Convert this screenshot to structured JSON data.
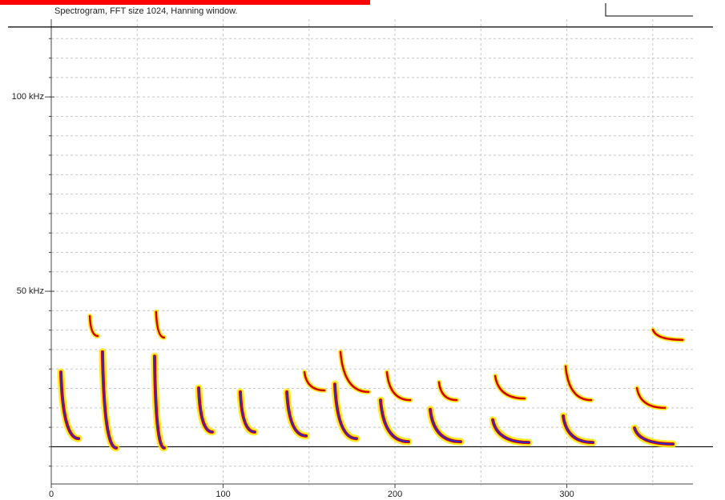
{
  "chart_data": {
    "type": "spectrogram",
    "title": "Spectrogram, FFT size 1024, Hanning window.",
    "xlim": [
      0,
      373.4
    ],
    "xticks": [
      0,
      100,
      200,
      300
    ],
    "ylim": [
      0,
      120
    ],
    "yticks": [
      {
        "value": 50,
        "label": "50 kHz"
      },
      {
        "value": 100,
        "label": "100 kHz"
      }
    ],
    "xgrid": [
      50,
      100,
      150,
      200,
      250,
      300,
      350
    ],
    "ygrid": [
      5,
      10,
      15,
      20,
      25,
      30,
      35,
      40,
      45,
      50,
      55,
      60,
      65,
      70,
      75,
      80,
      85,
      90,
      95,
      100,
      105,
      110,
      115
    ],
    "limit_lines": [
      118,
      10
    ],
    "colors": [
      "#ffe600",
      "#d40000",
      "#2a2ad0"
    ],
    "calls": [
      {
        "t": [
          5.6,
          15.9
        ],
        "f": [
          29.2,
          12.1
        ]
      },
      {
        "t": [
          29.8,
          37.8
        ],
        "f": [
          34.4,
          9.7
        ]
      },
      {
        "t": [
          60.1,
          65.7
        ],
        "f": [
          33.3,
          9.7
        ]
      },
      {
        "t": [
          85.8,
          93.7
        ],
        "f": [
          25.1,
          13.8
        ]
      },
      {
        "t": [
          110,
          118.4
        ],
        "f": [
          24.1,
          13.8
        ]
      },
      {
        "t": [
          137.1,
          148.3
        ],
        "f": [
          24.1,
          12.8
        ]
      },
      {
        "t": [
          165,
          177.6
        ],
        "f": [
          26.1,
          12.1
        ]
      },
      {
        "t": [
          191.6,
          207.9
        ],
        "f": [
          22,
          11.3
        ]
      },
      {
        "t": [
          220.5,
          238.2
        ],
        "f": [
          19.6,
          11.3
        ]
      },
      {
        "t": [
          256.9,
          277.9
        ],
        "f": [
          16.9,
          11.1
        ]
      },
      {
        "t": [
          297.9,
          315.2
        ],
        "f": [
          17.9,
          11.1
        ]
      },
      {
        "t": [
          339.4,
          361.8
        ],
        "f": [
          14.8,
          10.7
        ]
      }
    ],
    "harmonics": [
      {
        "t": [
          22.4,
          27
        ],
        "f": [
          43.6,
          38.5
        ]
      },
      {
        "t": [
          61,
          65.7
        ],
        "f": [
          44.7,
          38.1
        ]
      },
      {
        "t": [
          147.3,
          159
        ],
        "f": [
          29.2,
          24.5
        ]
      },
      {
        "t": [
          168.3,
          184.6
        ],
        "f": [
          34.4,
          24.1
        ]
      },
      {
        "t": [
          195.3,
          208.9
        ],
        "f": [
          29.2,
          22
        ]
      },
      {
        "t": [
          225.6,
          235.9
        ],
        "f": [
          26.6,
          22
        ]
      },
      {
        "t": [
          258.3,
          275.5
        ],
        "f": [
          28.2,
          22.4
        ]
      },
      {
        "t": [
          299.3,
          314.2
        ],
        "f": [
          30.7,
          22
        ]
      },
      {
        "t": [
          340.8,
          357.1
        ],
        "f": [
          25.1,
          20
        ]
      },
      {
        "t": [
          350.1,
          367.4
        ],
        "f": [
          40.1,
          37.5
        ]
      }
    ]
  }
}
